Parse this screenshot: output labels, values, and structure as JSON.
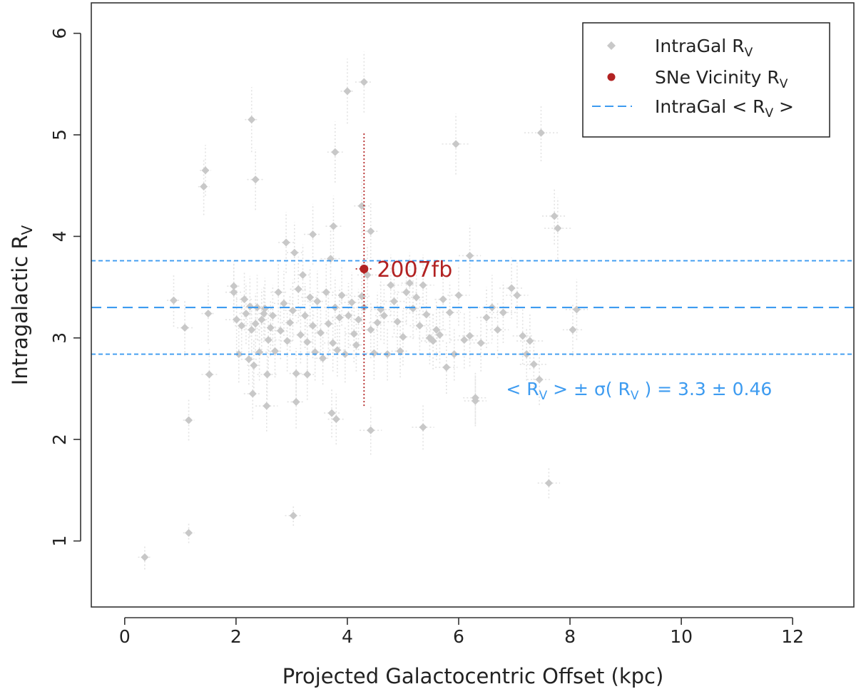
{
  "chart_data": {
    "type": "scatter",
    "title": "",
    "xlabel": "Projected Galactocentric Offset (kpc)",
    "ylabel": {
      "main": "Intragalactic R",
      "sub": "V"
    },
    "xlim": [
      -0.6,
      13.1
    ],
    "ylim": [
      0.35,
      6.3
    ],
    "x_ticks": [
      "0",
      "2",
      "4",
      "6",
      "8",
      "10",
      "12"
    ],
    "x_tick_values": [
      0,
      2,
      4,
      6,
      8,
      10,
      12
    ],
    "y_ticks": [
      "1",
      "2",
      "3",
      "4",
      "5",
      "6"
    ],
    "y_tick_values": [
      1,
      2,
      3,
      4,
      5,
      6
    ],
    "legend": {
      "position": "top-right",
      "entries": [
        {
          "main": "IntraGal R",
          "sub": "V",
          "tail": "",
          "marker": "diamond",
          "color": "#c8c8c8"
        },
        {
          "main": "SNe Vicinity R",
          "sub": "V",
          "tail": "",
          "marker": "circle",
          "color": "#b22222"
        },
        {
          "main": "IntraGal < R",
          "sub": "V",
          "tail": " >",
          "marker": "dash",
          "color": "#3d9bf0"
        }
      ]
    },
    "colors": {
      "intragal": "#c8c8c8",
      "intragal_err": "#e2e2e2",
      "sn": "#b22222",
      "mean_line": "#3d9bf0"
    },
    "mean_rv": 3.3,
    "sigma_rv": 0.46,
    "mean_annotation": {
      "parts": [
        "< R",
        "V",
        " > ± σ( R",
        "V",
        " ) =  3.3 ± 0.46"
      ],
      "x": 6.85,
      "y": 2.5
    },
    "series": [
      {
        "name": "IntraGal R_V",
        "marker": "diamond",
        "x": [
          0.36,
          1.15,
          1.15,
          3.03,
          0.88,
          1.08,
          1.5,
          1.45,
          1.42,
          1.96,
          1.96,
          2.01,
          2.05,
          2.1,
          2.15,
          2.18,
          2.23,
          2.25,
          2.28,
          2.32,
          2.35,
          2.38,
          2.42,
          2.46,
          2.5,
          2.52,
          2.58,
          2.62,
          2.66,
          2.7,
          2.76,
          2.8,
          2.86,
          2.92,
          2.97,
          3.02,
          3.08,
          3.12,
          3.16,
          3.2,
          3.24,
          3.28,
          3.33,
          3.38,
          3.42,
          3.46,
          3.52,
          3.56,
          3.62,
          3.66,
          3.7,
          3.74,
          3.78,
          3.82,
          3.86,
          3.9,
          3.96,
          4.02,
          4.08,
          4.12,
          4.16,
          4.2,
          4.26,
          4.3,
          4.36,
          4.42,
          4.48,
          4.54,
          4.6,
          4.66,
          4.72,
          4.78,
          4.84,
          4.9,
          4.95,
          5.0,
          5.06,
          5.12,
          5.18,
          5.24,
          5.3,
          5.36,
          5.42,
          5.48,
          5.54,
          5.6,
          5.66,
          5.72,
          5.78,
          5.84,
          5.92,
          6.0,
          6.1,
          6.2,
          6.3,
          6.4,
          6.5,
          6.6,
          6.7,
          6.8,
          6.95,
          7.05,
          7.15,
          7.22,
          7.28,
          7.35,
          7.45,
          7.62,
          7.72,
          7.78,
          8.05,
          8.12,
          2.28,
          2.35,
          2.9,
          3.38,
          3.78,
          3.8,
          4.0,
          4.26,
          4.3,
          4.42,
          5.95,
          6.2,
          7.48,
          3.08,
          3.72,
          3.75,
          5.36,
          4.42,
          3.05,
          3.28,
          2.55,
          2.56,
          2.3,
          1.52,
          6.3
        ],
        "y": [
          0.84,
          1.08,
          2.19,
          1.25,
          3.37,
          3.1,
          3.24,
          4.65,
          4.49,
          3.51,
          3.45,
          3.18,
          2.84,
          3.12,
          3.38,
          3.24,
          2.79,
          3.31,
          3.08,
          2.73,
          3.14,
          3.3,
          2.86,
          3.18,
          3.24,
          3.29,
          2.98,
          3.1,
          3.22,
          2.87,
          3.45,
          3.07,
          3.34,
          2.97,
          3.15,
          3.27,
          2.65,
          3.48,
          3.03,
          3.62,
          3.22,
          2.96,
          3.4,
          3.12,
          2.86,
          3.36,
          3.05,
          2.8,
          3.45,
          3.14,
          3.78,
          2.95,
          3.3,
          2.88,
          3.2,
          3.42,
          2.84,
          3.22,
          3.35,
          3.04,
          2.93,
          3.18,
          3.41,
          3.3,
          3.62,
          3.08,
          2.85,
          3.15,
          3.28,
          3.22,
          2.84,
          3.52,
          3.36,
          3.16,
          2.87,
          3.01,
          3.45,
          3.54,
          3.29,
          3.4,
          3.12,
          3.52,
          3.23,
          3.0,
          2.97,
          3.08,
          3.03,
          3.38,
          2.71,
          3.25,
          2.84,
          3.42,
          2.98,
          3.02,
          2.41,
          2.95,
          3.2,
          3.3,
          3.08,
          3.25,
          3.49,
          3.42,
          3.02,
          2.84,
          2.97,
          2.74,
          2.59,
          1.57,
          4.2,
          4.08,
          3.08,
          3.28,
          5.15,
          4.56,
          3.94,
          4.02,
          4.83,
          2.2,
          5.43,
          4.3,
          5.52,
          2.09,
          4.91,
          3.81,
          5.02,
          2.37,
          2.26,
          4.1,
          2.12,
          4.05,
          3.84,
          2.64,
          2.33,
          2.64,
          2.45,
          2.64,
          2.38
        ],
        "xerr": [
          0.12,
          0.1,
          0.1,
          0.15,
          0.12,
          0.14,
          0.12,
          0.1,
          0.1,
          0.12,
          0.15,
          0.2,
          0.15,
          0.12,
          0.15,
          0.12,
          0.14,
          0.12,
          0.14,
          0.12,
          0.16,
          0.18,
          0.15,
          0.12,
          0.16,
          0.15,
          0.2,
          0.18,
          0.14,
          0.12,
          0.14,
          0.16,
          0.18,
          0.12,
          0.15,
          0.14,
          0.12,
          0.15,
          0.14,
          0.16,
          0.18,
          0.12,
          0.16,
          0.14,
          0.12,
          0.18,
          0.16,
          0.12,
          0.15,
          0.14,
          0.18,
          0.16,
          0.2,
          0.15,
          0.14,
          0.18,
          0.14,
          0.16,
          0.2,
          0.16,
          0.12,
          0.15,
          0.14,
          0.2,
          0.18,
          0.16,
          0.14,
          0.15,
          0.18,
          0.16,
          0.14,
          0.2,
          0.22,
          0.18,
          0.16,
          0.2,
          0.22,
          0.15,
          0.18,
          0.16,
          0.18,
          0.2,
          0.15,
          0.2,
          0.22,
          0.18,
          0.22,
          0.15,
          0.2,
          0.2,
          0.24,
          0.2,
          0.25,
          0.2,
          0.22,
          0.2,
          0.18,
          0.24,
          0.2,
          0.25,
          0.22,
          0.2,
          0.18,
          0.22,
          0.24,
          0.25,
          0.22,
          0.2,
          0.22,
          0.24,
          0.18,
          0.2,
          0.12,
          0.15,
          0.14,
          0.16,
          0.14,
          0.15,
          0.12,
          0.14,
          0.16,
          0.2,
          0.25,
          0.2,
          0.3,
          0.16,
          0.14,
          0.14,
          0.2,
          0.16,
          0.14,
          0.16,
          0.2,
          0.18,
          0.16,
          0.14,
          0.2
        ],
        "yerr": [
          0.12,
          0.1,
          0.2,
          0.1,
          0.26,
          0.28,
          0.3,
          0.25,
          0.28,
          0.25,
          0.3,
          0.32,
          0.28,
          0.3,
          0.28,
          0.3,
          0.25,
          0.3,
          0.28,
          0.26,
          0.3,
          0.32,
          0.28,
          0.3,
          0.28,
          0.3,
          0.32,
          0.28,
          0.3,
          0.26,
          0.3,
          0.28,
          0.32,
          0.3,
          0.28,
          0.3,
          0.25,
          0.32,
          0.28,
          0.3,
          0.32,
          0.28,
          0.3,
          0.32,
          0.28,
          0.3,
          0.28,
          0.26,
          0.3,
          0.32,
          0.3,
          0.28,
          0.3,
          0.26,
          0.3,
          0.3,
          0.28,
          0.32,
          0.3,
          0.28,
          0.26,
          0.3,
          0.32,
          0.3,
          0.3,
          0.28,
          0.26,
          0.3,
          0.3,
          0.28,
          0.26,
          0.3,
          0.32,
          0.3,
          0.26,
          0.28,
          0.32,
          0.3,
          0.3,
          0.32,
          0.28,
          0.3,
          0.28,
          0.26,
          0.28,
          0.3,
          0.28,
          0.3,
          0.26,
          0.3,
          0.26,
          0.3,
          0.28,
          0.3,
          0.26,
          0.28,
          0.3,
          0.32,
          0.28,
          0.3,
          0.3,
          0.32,
          0.28,
          0.26,
          0.28,
          0.26,
          0.25,
          0.15,
          0.28,
          0.3,
          0.26,
          0.3,
          0.32,
          0.3,
          0.3,
          0.3,
          0.3,
          0.25,
          0.32,
          0.3,
          0.3,
          0.24,
          0.3,
          0.3,
          0.28,
          0.26,
          0.24,
          0.3,
          0.22,
          0.3,
          0.3,
          0.25,
          0.25,
          0.25,
          0.25,
          0.25,
          0.25
        ]
      },
      {
        "name": "SNe Vicinity R_V",
        "marker": "circle",
        "label": "2007fb",
        "x": [
          4.3
        ],
        "y": [
          3.68
        ],
        "xerr": [
          0.15
        ],
        "yerr_low": [
          1.35
        ],
        "yerr_high": [
          1.35
        ]
      }
    ],
    "hlines": [
      {
        "label": "IntraGal < R_V >",
        "y": 3.3,
        "style": "long-dash"
      },
      {
        "label": "+σ",
        "y": 3.76,
        "style": "short-dash"
      },
      {
        "label": "-σ",
        "y": 2.84,
        "style": "short-dash"
      }
    ]
  }
}
